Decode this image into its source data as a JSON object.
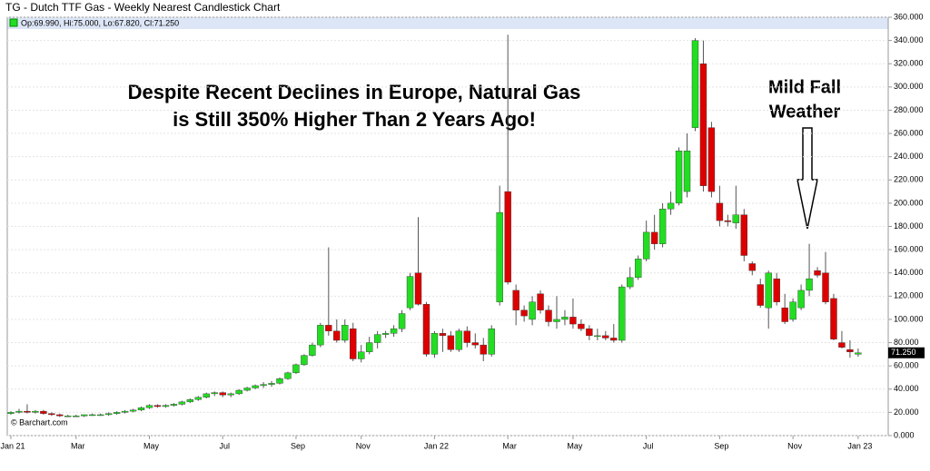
{
  "chart_data": {
    "type": "candlestick",
    "title": "TG - Dutch TTF Gas - Weekly Nearest Candlestick Chart",
    "legend_text": "Op:69.990, Hi:75.000, Lo:67.820, Cl:71.250",
    "annotations": [
      "Despite Recent Declines in Europe, Natural Gas",
      "is Still 350% Higher Than 2 Years Ago!",
      "Mild Fall",
      "Weather"
    ],
    "source": "© Barchart.com",
    "last_label": "71.250",
    "up_color": "#22dd22",
    "down_color": "#dd0000",
    "grid": true,
    "categories": [
      "Jan 21",
      null,
      null,
      null,
      null,
      null,
      null,
      null,
      "Mar",
      null,
      null,
      null,
      null,
      null,
      null,
      null,
      null,
      "May",
      null,
      null,
      null,
      null,
      null,
      null,
      null,
      null,
      "Jul",
      null,
      null,
      null,
      null,
      null,
      null,
      null,
      null,
      "Sep",
      null,
      null,
      null,
      null,
      null,
      null,
      null,
      "Nov",
      null,
      null,
      null,
      null,
      null,
      null,
      null,
      null,
      "Jan 22",
      null,
      null,
      null,
      null,
      null,
      null,
      null,
      null,
      "Mar",
      null,
      null,
      null,
      null,
      null,
      null,
      null,
      "May",
      null,
      null,
      null,
      null,
      null,
      null,
      null,
      null,
      "Jul",
      null,
      null,
      null,
      null,
      null,
      null,
      null,
      null,
      "Sep",
      null,
      null,
      null,
      null,
      null,
      null,
      null,
      null,
      "Nov",
      null,
      null,
      null,
      null,
      null,
      null,
      null,
      "Jan 23"
    ],
    "open": [
      19,
      20,
      21,
      20,
      21,
      19,
      18,
      17,
      17,
      17,
      18,
      18,
      18,
      19,
      20,
      21,
      22,
      24,
      26,
      25,
      26,
      27,
      29,
      31,
      33,
      36,
      37,
      35,
      36,
      39,
      41,
      43,
      44,
      45,
      49,
      54,
      61,
      69,
      78,
      95,
      90,
      82,
      92,
      66,
      72,
      80,
      87,
      88,
      92,
      110,
      140,
      113,
      70,
      88,
      86,
      74,
      90,
      80,
      78,
      70,
      115,
      210,
      125,
      108,
      100,
      122,
      108,
      98,
      100,
      102,
      96,
      92,
      86,
      86,
      84,
      82,
      128,
      136,
      152,
      175,
      165,
      195,
      200,
      210,
      265,
      320,
      265,
      200,
      185,
      183,
      190,
      148,
      130,
      110,
      135,
      110,
      100,
      110,
      125,
      142,
      140,
      118,
      80,
      74,
      69.99
    ],
    "high": [
      21,
      23,
      27,
      22,
      22,
      20,
      19,
      18,
      18,
      18,
      19,
      19,
      20,
      21,
      22,
      23,
      25,
      27,
      27,
      27,
      28,
      30,
      32,
      34,
      37,
      38,
      38,
      37,
      40,
      42,
      44,
      46,
      47,
      50,
      55,
      62,
      70,
      80,
      97,
      162,
      100,
      100,
      97,
      78,
      85,
      90,
      90,
      95,
      108,
      140,
      188,
      115,
      90,
      92,
      90,
      92,
      94,
      88,
      84,
      95,
      215,
      345,
      130,
      112,
      120,
      125,
      112,
      120,
      108,
      118,
      100,
      95,
      92,
      90,
      96,
      130,
      145,
      155,
      185,
      190,
      200,
      210,
      248,
      260,
      342,
      340,
      270,
      215,
      190,
      215,
      195,
      150,
      135,
      142,
      140,
      122,
      118,
      130,
      165,
      145,
      158,
      122,
      90,
      82,
      75
    ],
    "low": [
      18,
      19,
      19,
      19,
      18,
      17,
      16,
      16,
      16,
      16,
      17,
      17,
      17,
      18,
      19,
      20,
      21,
      23,
      24,
      24,
      25,
      26,
      28,
      30,
      32,
      34,
      33,
      33,
      35,
      38,
      40,
      41,
      42,
      44,
      48,
      53,
      60,
      68,
      76,
      86,
      80,
      80,
      64,
      63,
      70,
      75,
      84,
      85,
      89,
      108,
      112,
      68,
      67,
      72,
      72,
      72,
      76,
      75,
      64,
      68,
      112,
      130,
      95,
      98,
      95,
      105,
      94,
      92,
      95,
      92,
      90,
      82,
      82,
      82,
      80,
      80,
      126,
      134,
      150,
      160,
      162,
      190,
      198,
      205,
      262,
      210,
      205,
      180,
      180,
      178,
      150,
      138,
      110,
      92,
      112,
      96,
      98,
      108,
      120,
      136,
      113,
      82,
      75,
      67,
      67.82
    ],
    "close": [
      20,
      21,
      20,
      21,
      19,
      18,
      17,
      17,
      17,
      18,
      18,
      18,
      19,
      20,
      21,
      22,
      24,
      26,
      25,
      26,
      27,
      29,
      31,
      33,
      36,
      37,
      35,
      36,
      39,
      41,
      43,
      44,
      45,
      49,
      54,
      61,
      69,
      78,
      95,
      90,
      82,
      95,
      66,
      72,
      80,
      87,
      88,
      92,
      105,
      137,
      113,
      70,
      88,
      86,
      74,
      90,
      80,
      78,
      70,
      92,
      192,
      132,
      108,
      103,
      115,
      108,
      98,
      100,
      102,
      96,
      92,
      86,
      86,
      84,
      82,
      128,
      136,
      152,
      175,
      165,
      195,
      200,
      245,
      245,
      340,
      215,
      210,
      185,
      184,
      190,
      155,
      142,
      112,
      140,
      115,
      98,
      115,
      125,
      135,
      138,
      115,
      83,
      76,
      72,
      71.25
    ],
    "ylim": [
      0,
      360
    ],
    "yticks": [
      {
        "value": 0,
        "label": "0.000"
      },
      {
        "value": 20,
        "label": "20.000"
      },
      {
        "value": 40,
        "label": "40.000"
      },
      {
        "value": 60,
        "label": "60.000"
      },
      {
        "value": 80,
        "label": "80.000"
      },
      {
        "value": 100,
        "label": "100.000"
      },
      {
        "value": 120,
        "label": "120.000"
      },
      {
        "value": 140,
        "label": "140.000"
      },
      {
        "value": 160,
        "label": "160.000"
      },
      {
        "value": 180,
        "label": "180.000"
      },
      {
        "value": 200,
        "label": "200.000"
      },
      {
        "value": 220,
        "label": "220.000"
      },
      {
        "value": 240,
        "label": "240.000"
      },
      {
        "value": 260,
        "label": "260.000"
      },
      {
        "value": 280,
        "label": "280.000"
      },
      {
        "value": 300,
        "label": "300.000"
      },
      {
        "value": 320,
        "label": "320.000"
      },
      {
        "value": 340,
        "label": "340.000"
      },
      {
        "value": 360,
        "label": "360.000"
      }
    ]
  }
}
